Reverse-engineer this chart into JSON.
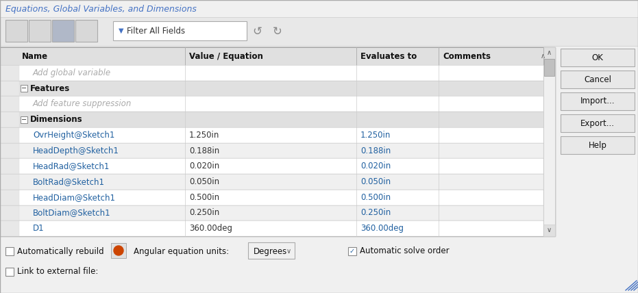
{
  "title": "Equations, Global Variables, and Dimensions",
  "title_color": "#4472c4",
  "bg_color": "#f0f0f0",
  "toolbar_bg": "#e8e8e8",
  "table_bg": "#ffffff",
  "header_bg": "#e0e0e0",
  "section_bg": "#e0e0e0",
  "white_bg": "#ffffff",
  "alt_bg": "#f0f0f0",
  "col_headers": [
    "Name",
    "Value / Equation",
    "Evaluates to",
    "Comments"
  ],
  "rows": [
    {
      "indent": 1,
      "name": "Add global variable",
      "value": "",
      "eval": "",
      "italic": true,
      "bold": false,
      "name_color": "#aaaaaa",
      "val_color": "#333333",
      "ev_color": "#aaaaaa",
      "bg": "#ffffff"
    },
    {
      "indent": 0,
      "name": "Features",
      "value": "",
      "eval": "",
      "italic": false,
      "bold": true,
      "name_color": "#111111",
      "val_color": "#333333",
      "ev_color": "#333333",
      "bg": "#e0e0e0",
      "section": true
    },
    {
      "indent": 1,
      "name": "Add feature suppression",
      "value": "",
      "eval": "",
      "italic": true,
      "bold": false,
      "name_color": "#aaaaaa",
      "val_color": "#333333",
      "ev_color": "#aaaaaa",
      "bg": "#ffffff"
    },
    {
      "indent": 0,
      "name": "Dimensions",
      "value": "",
      "eval": "",
      "italic": false,
      "bold": true,
      "name_color": "#111111",
      "val_color": "#333333",
      "ev_color": "#333333",
      "bg": "#e0e0e0",
      "section": true
    },
    {
      "indent": 1,
      "name": "OvrHeight@Sketch1",
      "value": "1.250in",
      "eval": "1.250in",
      "italic": false,
      "bold": false,
      "name_color": "#2060a0",
      "val_color": "#333333",
      "ev_color": "#2060a0",
      "bg": "#ffffff"
    },
    {
      "indent": 1,
      "name": "HeadDepth@Sketch1",
      "value": "0.188in",
      "eval": "0.188in",
      "italic": false,
      "bold": false,
      "name_color": "#2060a0",
      "val_color": "#333333",
      "ev_color": "#2060a0",
      "bg": "#f0f0f0"
    },
    {
      "indent": 1,
      "name": "HeadRad@Sketch1",
      "value": "0.020in",
      "eval": "0.020in",
      "italic": false,
      "bold": false,
      "name_color": "#2060a0",
      "val_color": "#333333",
      "ev_color": "#2060a0",
      "bg": "#ffffff"
    },
    {
      "indent": 1,
      "name": "BoltRad@Sketch1",
      "value": "0.050in",
      "eval": "0.050in",
      "italic": false,
      "bold": false,
      "name_color": "#2060a0",
      "val_color": "#333333",
      "ev_color": "#2060a0",
      "bg": "#f0f0f0"
    },
    {
      "indent": 1,
      "name": "HeadDiam@Sketch1",
      "value": "0.500in",
      "eval": "0.500in",
      "italic": false,
      "bold": false,
      "name_color": "#2060a0",
      "val_color": "#333333",
      "ev_color": "#2060a0",
      "bg": "#ffffff"
    },
    {
      "indent": 1,
      "name": "BoltDiam@Sketch1",
      "value": "0.250in",
      "eval": "0.250in",
      "italic": false,
      "bold": false,
      "name_color": "#2060a0",
      "val_color": "#333333",
      "ev_color": "#2060a0",
      "bg": "#f0f0f0"
    },
    {
      "indent": 1,
      "name": "D1",
      "value": "360.00deg",
      "eval": "360.00deg",
      "italic": false,
      "bold": false,
      "name_color": "#2060a0",
      "val_color": "#333333",
      "ev_color": "#2060a0",
      "bg": "#ffffff"
    }
  ],
  "buttons": [
    "OK",
    "Cancel",
    "Import...",
    "Export...",
    "Help"
  ],
  "btn_bg": "#e8e8e8",
  "btn_border": "#aaaaaa",
  "footer_line1": [
    "cb_auto_rebuild",
    "icon_bug",
    "Angular equation units:",
    "degrees_dd",
    "cb_auto_solve"
  ],
  "footer_cb1_label": "Automatically rebuild",
  "footer_cb2_label": "Automatic solve order",
  "footer_degrees": "Degrees",
  "footer_cb3_label": "Link to external file:"
}
